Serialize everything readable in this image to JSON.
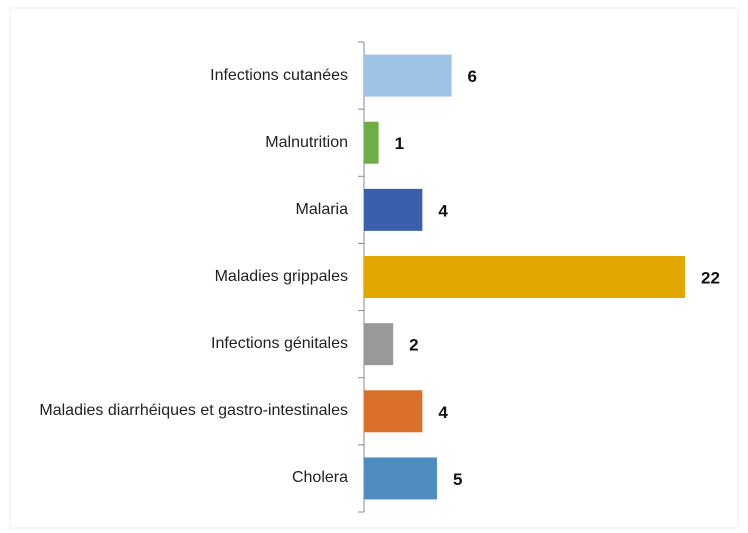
{
  "chart_data": {
    "type": "bar",
    "orientation": "horizontal",
    "categories": [
      "Infections cutanées",
      "Malnutrition",
      "Malaria",
      "Maladies grippales",
      "Infections génitales",
      "Maladies diarrhéiques et gastro-intestinales",
      "Cholera"
    ],
    "values": [
      6,
      1,
      4,
      22,
      2,
      4,
      5
    ],
    "colors": [
      "#9dc3e6",
      "#70ad47",
      "#3a5fac",
      "#e3a800",
      "#999999",
      "#d9702a",
      "#4f8dc0"
    ],
    "xlim": [
      0,
      22
    ],
    "data_labels": true
  }
}
